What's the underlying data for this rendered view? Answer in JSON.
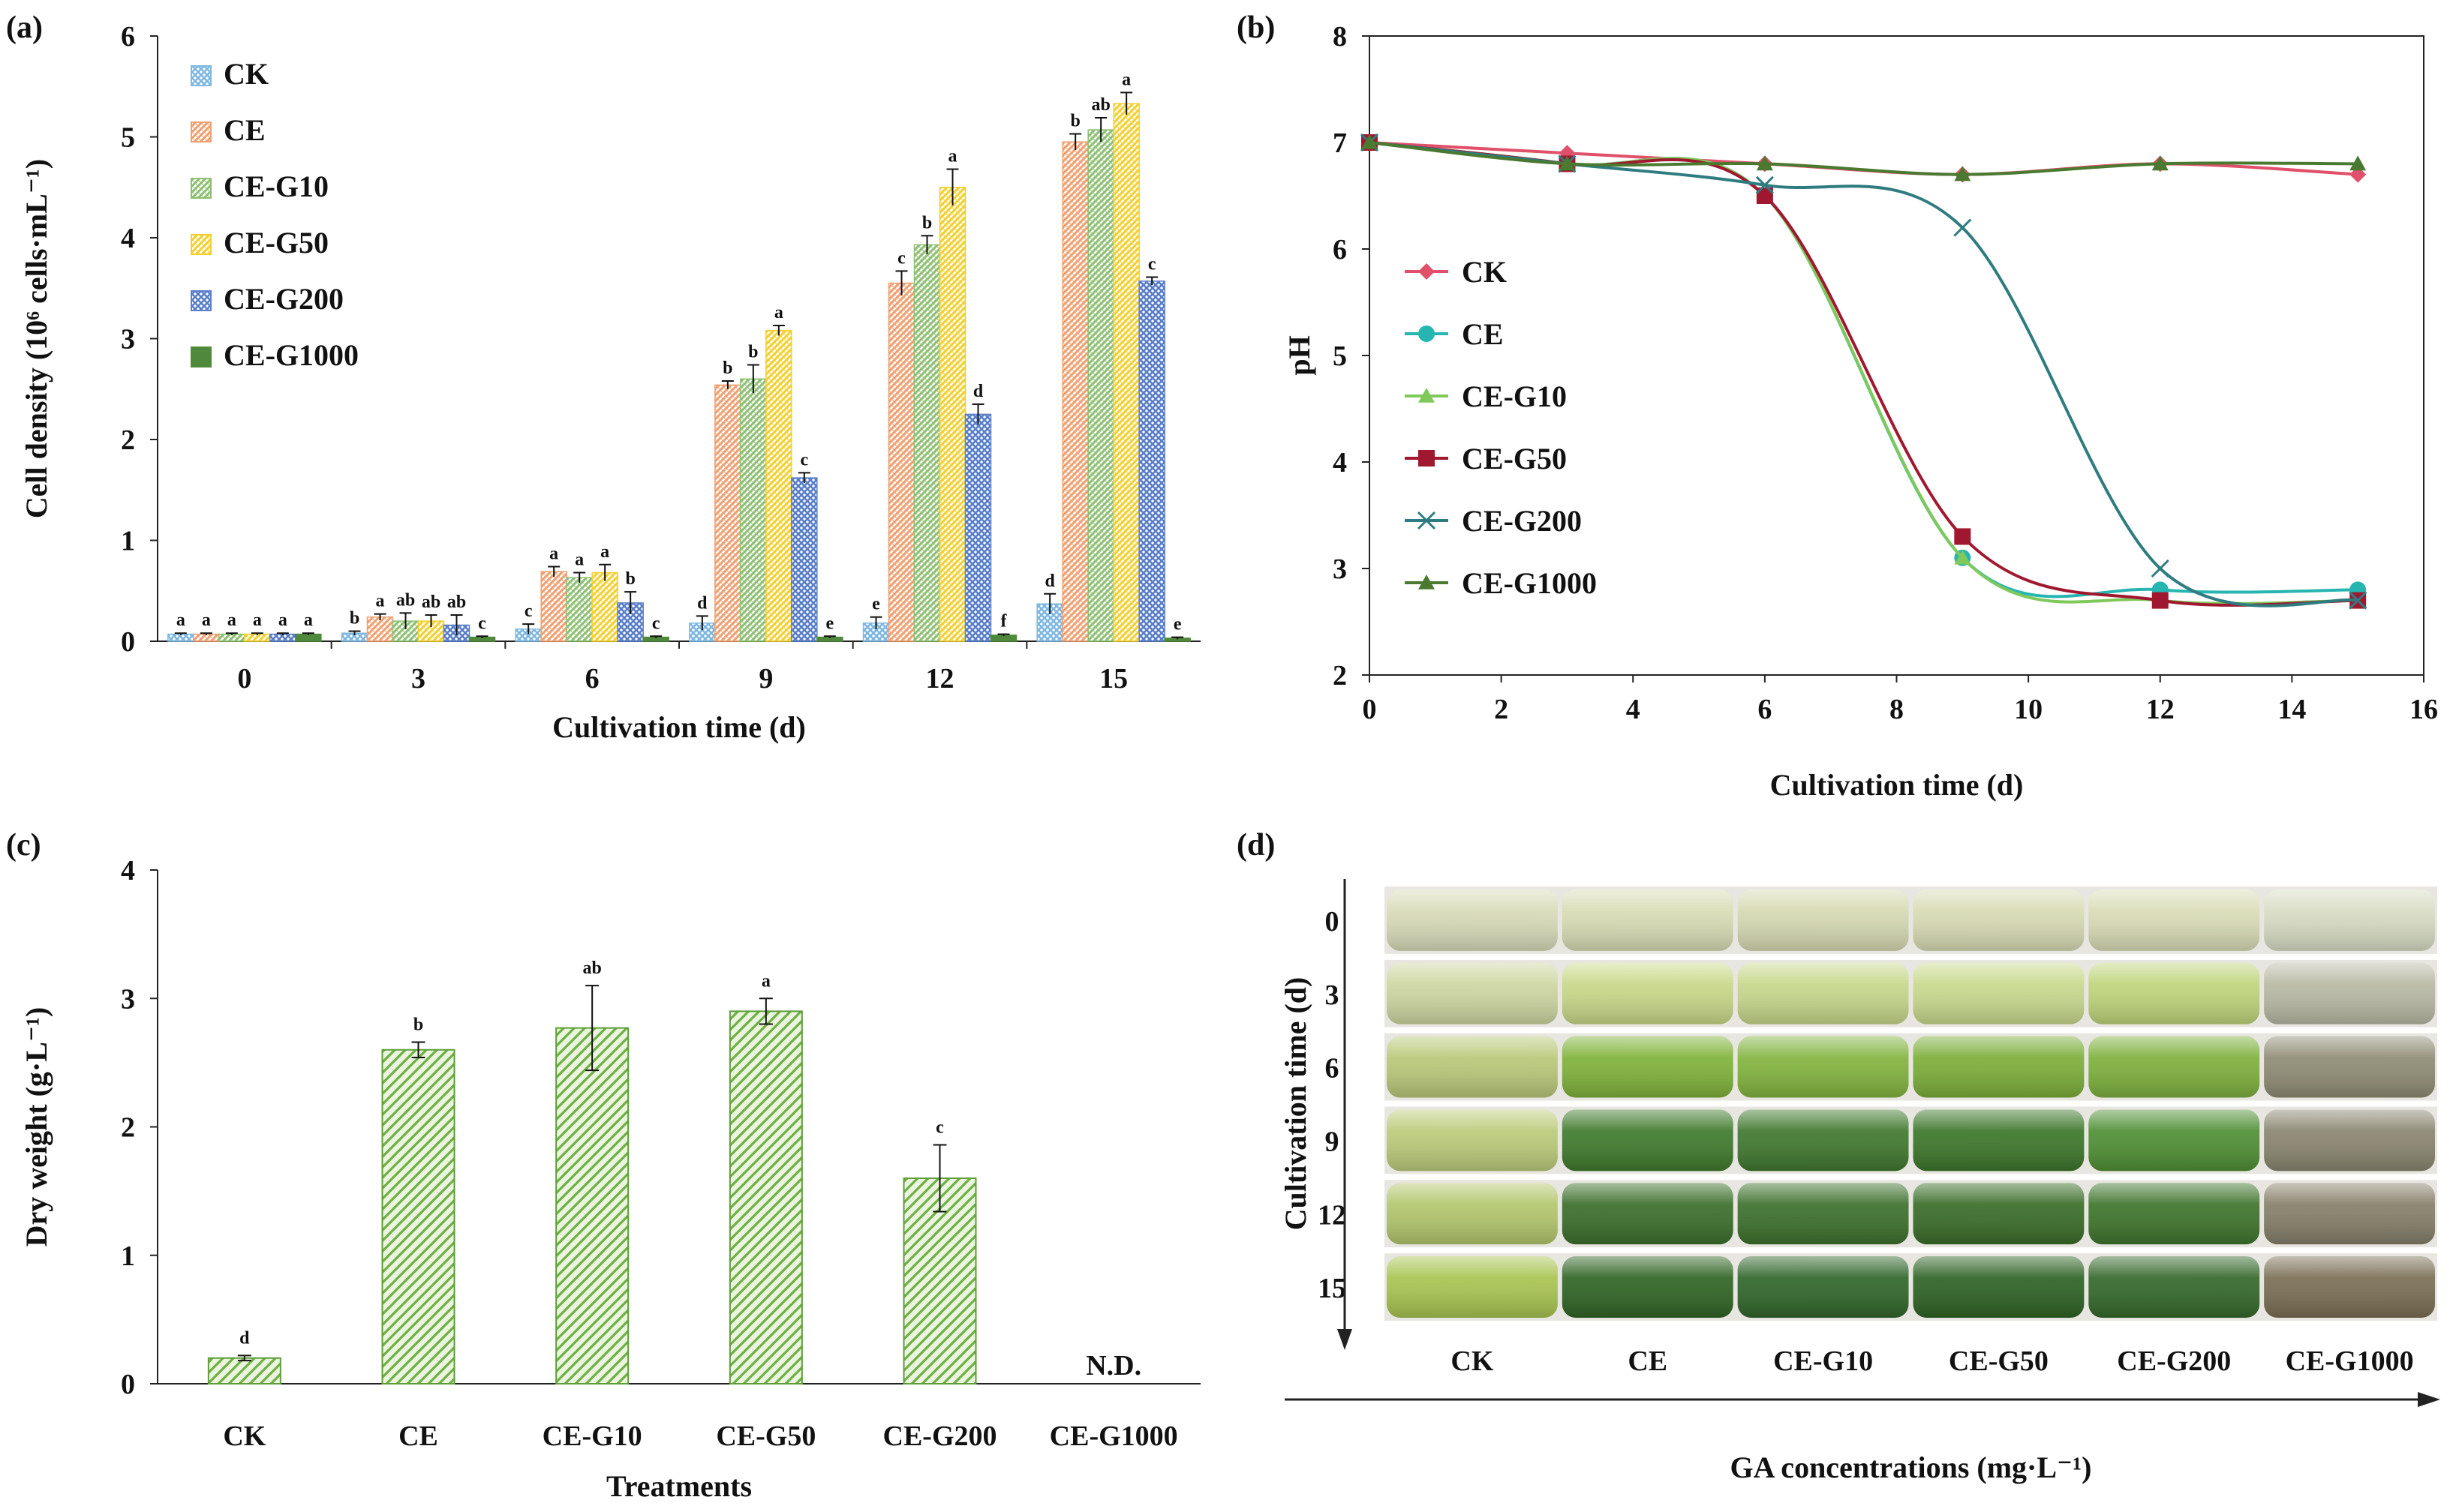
{
  "colors": {
    "CK": "#7FB8E0",
    "CE": "#F0A070",
    "CE-G10": "#8CC070",
    "CE-G50": "#F2D030",
    "CE-G200": "#5B7FC8",
    "CE-G1000": "#4F8A3C",
    "ph_CK": "#E0506A",
    "ph_CE": "#26B5B0",
    "ph_CE-G10": "#7FC85A",
    "ph_CE-G50": "#A01830",
    "ph_CE-G200": "#2E7C80",
    "ph_CE-G1000": "#4A7A30"
  },
  "chart_data": [
    {
      "id": "a",
      "panel_label": "(a)",
      "type": "bar",
      "xlabel": "Cultivation time (d)",
      "ylabel": "Cell density (10⁶ cells·mL⁻¹)",
      "ylim": [
        0,
        6
      ],
      "yticks": [
        "0",
        "1",
        "2",
        "3",
        "4",
        "5",
        "6"
      ],
      "categories": [
        "0",
        "3",
        "6",
        "9",
        "12",
        "15"
      ],
      "legend_position": "top-left",
      "series": [
        {
          "name": "CK",
          "values": [
            0.07,
            0.08,
            0.12,
            0.18,
            0.18,
            0.37
          ],
          "errors": [
            0.01,
            0.02,
            0.05,
            0.07,
            0.06,
            0.1
          ],
          "labels": [
            "a",
            "b",
            "c",
            "d",
            "e",
            "d"
          ]
        },
        {
          "name": "CE",
          "values": [
            0.07,
            0.24,
            0.69,
            2.54,
            3.55,
            4.95
          ],
          "errors": [
            0.01,
            0.03,
            0.05,
            0.04,
            0.12,
            0.08
          ],
          "labels": [
            "a",
            "a",
            "a",
            "b",
            "c",
            "b"
          ]
        },
        {
          "name": "CE-G10",
          "values": [
            0.07,
            0.2,
            0.63,
            2.6,
            3.93,
            5.07
          ],
          "errors": [
            0.01,
            0.08,
            0.05,
            0.14,
            0.09,
            0.12
          ],
          "labels": [
            "a",
            "ab",
            "a",
            "b",
            "b",
            "ab"
          ]
        },
        {
          "name": "CE-G50",
          "values": [
            0.07,
            0.2,
            0.68,
            3.08,
            4.5,
            5.33
          ],
          "errors": [
            0.01,
            0.06,
            0.08,
            0.05,
            0.18,
            0.11
          ],
          "labels": [
            "a",
            "ab",
            "a",
            "a",
            "a",
            "a"
          ]
        },
        {
          "name": "CE-G200",
          "values": [
            0.07,
            0.16,
            0.38,
            1.62,
            2.25,
            3.57
          ],
          "errors": [
            0.01,
            0.1,
            0.11,
            0.05,
            0.1,
            0.04
          ],
          "labels": [
            "a",
            "ab",
            "b",
            "c",
            "d",
            "c"
          ]
        },
        {
          "name": "CE-G1000",
          "values": [
            0.07,
            0.04,
            0.04,
            0.04,
            0.06,
            0.03
          ],
          "errors": [
            0.01,
            0.01,
            0.01,
            0.01,
            0.01,
            0.01
          ],
          "labels": [
            "a",
            "c",
            "c",
            "e",
            "f",
            "e"
          ]
        }
      ]
    },
    {
      "id": "b",
      "panel_label": "(b)",
      "type": "line",
      "xlabel": "Cultivation time (d)",
      "ylabel": "pH",
      "xlim": [
        0,
        16
      ],
      "ylim": [
        2,
        8
      ],
      "xticks": [
        "0",
        "2",
        "4",
        "6",
        "8",
        "10",
        "12",
        "14",
        "16"
      ],
      "yticks": [
        "2",
        "3",
        "4",
        "5",
        "6",
        "7",
        "8"
      ],
      "legend_position": "center-left",
      "x": [
        0,
        3,
        6,
        9,
        12,
        15
      ],
      "series": [
        {
          "name": "CK",
          "marker": "diamond",
          "values": [
            7.0,
            6.9,
            6.8,
            6.7,
            6.8,
            6.7
          ]
        },
        {
          "name": "CE",
          "marker": "circle",
          "values": [
            7.0,
            6.8,
            6.5,
            3.1,
            2.8,
            2.8
          ]
        },
        {
          "name": "CE-G10",
          "marker": "triangle",
          "values": [
            7.0,
            6.8,
            6.5,
            3.1,
            2.7,
            2.7
          ]
        },
        {
          "name": "CE-G50",
          "marker": "square",
          "values": [
            7.0,
            6.8,
            6.5,
            3.3,
            2.7,
            2.7
          ]
        },
        {
          "name": "CE-G200",
          "marker": "cross",
          "values": [
            7.0,
            6.8,
            6.6,
            6.2,
            3.0,
            2.7
          ]
        },
        {
          "name": "CE-G1000",
          "marker": "triangle",
          "values": [
            7.0,
            6.8,
            6.8,
            6.7,
            6.8,
            6.8
          ]
        }
      ]
    },
    {
      "id": "c",
      "panel_label": "(c)",
      "type": "bar",
      "xlabel": "Treatments",
      "ylabel": "Dry weight (g·L⁻¹)",
      "ylim": [
        0,
        4
      ],
      "yticks": [
        "0",
        "1",
        "2",
        "3",
        "4"
      ],
      "categories": [
        "CK",
        "CE",
        "CE-G10",
        "CE-G50",
        "CE-G200",
        "CE-G1000"
      ],
      "values": [
        0.2,
        2.6,
        2.77,
        2.9,
        1.6,
        null
      ],
      "errors": [
        0.02,
        0.06,
        0.33,
        0.1,
        0.26,
        null
      ],
      "labels": [
        "d",
        "b",
        "ab",
        "a",
        "c",
        ""
      ],
      "not_detected_label": "N.D."
    }
  ],
  "photo_panel": {
    "panel_label": "(d)",
    "y_axis_title": "Cultivation time  (d)",
    "x_axis_title": "GA concentrations (mg·L⁻¹)",
    "rows": [
      "0",
      "3",
      "6",
      "9",
      "12",
      "15"
    ],
    "columns": [
      "CK",
      "CE",
      "CE-G10",
      "CE-G50",
      "CE-G200",
      "CE-G1000"
    ],
    "culture_colors": [
      [
        "#D8DBB8",
        "#D8DCB4",
        "#D6D9B2",
        "#D8DBB4",
        "#D9DCB6",
        "#D7DCC4"
      ],
      [
        "#CDD6A0",
        "#C8D888",
        "#C6D78A",
        "#C8D98C",
        "#BED47A",
        "#B8B8A4"
      ],
      [
        "#B8C878",
        "#7FB23A",
        "#82B43E",
        "#7BAE38",
        "#7DB03C",
        "#8E8C74"
      ],
      [
        "#BCCB7A",
        "#3F7A2C",
        "#40782E",
        "#3C762A",
        "#4F8F34",
        "#8A8570"
      ],
      [
        "#B2C66C",
        "#3A6E2A",
        "#3C702C",
        "#396C28",
        "#3E742C",
        "#857E68"
      ],
      [
        "#A8C450",
        "#2F6424",
        "#30662A",
        "#2E6224",
        "#34682A",
        "#7A6E54"
      ]
    ]
  }
}
